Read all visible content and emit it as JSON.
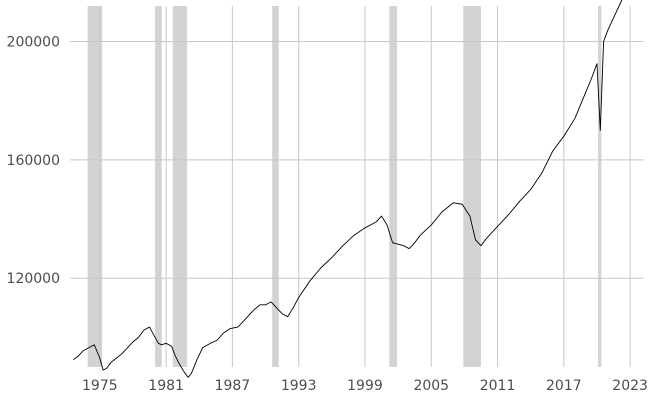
{
  "chart_data": {
    "type": "line",
    "title": "",
    "xlabel": "",
    "ylabel": "",
    "xlim": [
      1972.3,
      2024.8
    ],
    "ylim": [
      90000,
      212000
    ],
    "grid": true,
    "legend": "none",
    "x_ticks": [
      1975,
      1981,
      1987,
      1993,
      1999,
      2005,
      2011,
      2017,
      2023
    ],
    "x_tick_labels": [
      "1975",
      "1981",
      "1987",
      "1993",
      "1999",
      "2005",
      "2011",
      "2017",
      "2023"
    ],
    "y_ticks": [
      120000,
      160000,
      200000
    ],
    "y_tick_labels": [
      "120000",
      "160000",
      "200000"
    ],
    "shaded_periods": [
      [
        1973.9,
        1975.2
      ],
      [
        1980.0,
        1980.6
      ],
      [
        1981.6,
        1982.9
      ],
      [
        1990.6,
        1991.2
      ],
      [
        2001.2,
        2001.9
      ],
      [
        2007.9,
        2009.5
      ],
      [
        2020.1,
        2020.4
      ]
    ],
    "colors": {
      "series": "#000000",
      "shading": "#d3d3d3",
      "grid": "#c8c8c8",
      "text": "#4d4d4d"
    },
    "series": [
      {
        "x": [
          1972.6,
          1973.0,
          1973.5,
          1974.0,
          1974.5,
          1975.0,
          1975.3,
          1975.6,
          1976.0,
          1976.5,
          1977.0,
          1977.5,
          1978.0,
          1978.5,
          1979.0,
          1979.5,
          1980.0,
          1980.3,
          1980.6,
          1981.0,
          1981.5,
          1981.8,
          1982.2,
          1982.6,
          1983.0,
          1983.3,
          1983.8,
          1984.3,
          1985.0,
          1985.6,
          1986.2,
          1986.8,
          1987.5,
          1988.0,
          1988.5,
          1989.0,
          1989.5,
          1990.0,
          1990.5,
          1991.0,
          1991.5,
          1992.0,
          1992.5,
          1993.0,
          1994.0,
          1995.0,
          1996.0,
          1997.0,
          1998.0,
          1999.0,
          2000.0,
          2000.5,
          2001.0,
          2001.5,
          2002.0,
          2002.5,
          2003.0,
          2003.5,
          2004.0,
          2005.0,
          2006.0,
          2007.0,
          2007.8,
          2008.5,
          2009.0,
          2009.5,
          2010.0,
          2011.0,
          2012.0,
          2013.0,
          2014.0,
          2015.0,
          2016.0,
          2017.0,
          2018.0,
          2019.0,
          2019.5,
          2020.0,
          2020.3,
          2020.6,
          2021.0,
          2021.5,
          2022.0,
          2022.5
        ],
        "values": [
          92500,
          93500,
          95500,
          96500,
          97500,
          93000,
          89000,
          89500,
          91500,
          93000,
          94500,
          96500,
          98500,
          100000,
          102500,
          103500,
          100000,
          98000,
          97500,
          98000,
          97000,
          94000,
          91000,
          88500,
          86500,
          88000,
          92500,
          96500,
          98000,
          99000,
          101500,
          103000,
          103500,
          105500,
          107500,
          109500,
          111000,
          111000,
          112000,
          110000,
          108000,
          107000,
          110000,
          113500,
          119000,
          123500,
          127000,
          131000,
          134500,
          137000,
          139000,
          141000,
          138000,
          132000,
          131500,
          131000,
          130000,
          132000,
          134500,
          138000,
          142500,
          145500,
          145000,
          141000,
          133000,
          131000,
          133500,
          137500,
          141500,
          146000,
          150000,
          155500,
          163000,
          168000,
          174000,
          183000,
          187500,
          192500,
          170000,
          200000,
          204000,
          208000,
          212000,
          216000
        ]
      }
    ]
  }
}
